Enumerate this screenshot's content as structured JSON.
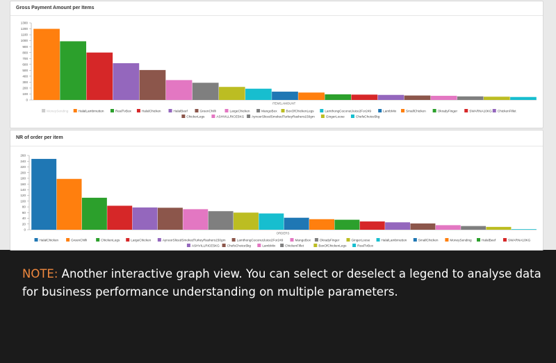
{
  "note": {
    "label": "NOTE:",
    "text": " Another interactive graph view. You can select or deselect a legend to analyse data for business performance understanding on multiple parameters."
  },
  "chart_data": [
    {
      "type": "bar",
      "title": "Gross Payment Amount per Items",
      "xlabel": "ITEMS,AMOUNT",
      "ylabel": "",
      "ylim": [
        0,
        1300
      ],
      "yticks": [
        0,
        100,
        200,
        300,
        400,
        500,
        600,
        700,
        800,
        900,
        1000,
        1100,
        1200,
        1300
      ],
      "legend_position": "bottom",
      "disabled_series": [
        "MoneySending"
      ],
      "series": [
        {
          "name": "MoneySending",
          "value": 0,
          "color": "#cccccc"
        },
        {
          "name": "HalalLambmutton",
          "value": 1200,
          "color": "#ff7f0e"
        },
        {
          "name": "RealTvBox",
          "value": 990,
          "color": "#2ca02c"
        },
        {
          "name": "HalalChicken",
          "value": 800,
          "color": "#d62728"
        },
        {
          "name": "HalalBeef",
          "value": 620,
          "color": "#9467bd"
        },
        {
          "name": "GreenChilli",
          "value": 505,
          "color": "#8c564b"
        },
        {
          "name": "LargeChicken",
          "value": 335,
          "color": "#e377c2"
        },
        {
          "name": "MangoBox",
          "value": 290,
          "color": "#7f7f7f"
        },
        {
          "name": "BoxOfChickenLegs",
          "value": 220,
          "color": "#bcbd22"
        },
        {
          "name": "LamthongCoconutJuice2For249",
          "value": 190,
          "color": "#17becf"
        },
        {
          "name": "LambMix",
          "value": 140,
          "color": "#1f77b4"
        },
        {
          "name": "SmallChicken",
          "value": 125,
          "color": "#ff7f0e"
        },
        {
          "name": "OkradyFinger",
          "value": 95,
          "color": "#2ca02c"
        },
        {
          "name": "SWARNA10KG",
          "value": 90,
          "color": "#d62728"
        },
        {
          "name": "ChickenFillet",
          "value": 85,
          "color": "#9467bd"
        },
        {
          "name": "ChickerLegs",
          "value": 75,
          "color": "#8c564b"
        },
        {
          "name": "ASHVILLRICE5KG",
          "value": 70,
          "color": "#e377c2"
        },
        {
          "name": "AynoorSlicedSmokedTurkeyRashers150gm",
          "value": 60,
          "color": "#7f7f7f"
        },
        {
          "name": "GingerLoose",
          "value": 55,
          "color": "#bcbd22"
        },
        {
          "name": "ChefsChoice5kg",
          "value": 50,
          "color": "#17becf"
        }
      ]
    },
    {
      "type": "bar",
      "title": "NR of order per item",
      "xlabel": "ORDERS",
      "ylabel": "",
      "ylim": [
        0,
        260
      ],
      "yticks": [
        0,
        20,
        40,
        60,
        80,
        100,
        120,
        140,
        160,
        180,
        200,
        220,
        240,
        260
      ],
      "legend_position": "bottom",
      "series": [
        {
          "name": "HalalChicken",
          "value": 248,
          "color": "#1f77b4"
        },
        {
          "name": "GreenChilli",
          "value": 178,
          "color": "#ff7f0e"
        },
        {
          "name": "ChickenLegs",
          "value": 112,
          "color": "#2ca02c"
        },
        {
          "name": "LargeChicken",
          "value": 84,
          "color": "#d62728"
        },
        {
          "name": "AynoorSlicedSmokedTurkeyRashers150gm",
          "value": 78,
          "color": "#9467bd"
        },
        {
          "name": "LamthongCoconutJuice2For249",
          "value": 77,
          "color": "#8c564b"
        },
        {
          "name": "MangoBox",
          "value": 72,
          "color": "#e377c2"
        },
        {
          "name": "OkradyFinger",
          "value": 65,
          "color": "#7f7f7f"
        },
        {
          "name": "GingerLoose",
          "value": 60,
          "color": "#bcbd22"
        },
        {
          "name": "HalalLambmutton",
          "value": 57,
          "color": "#17becf"
        },
        {
          "name": "SmallChicken",
          "value": 42,
          "color": "#1f77b4"
        },
        {
          "name": "MoneySending",
          "value": 37,
          "color": "#ff7f0e"
        },
        {
          "name": "HalalBeef",
          "value": 35,
          "color": "#2ca02c"
        },
        {
          "name": "SWARNA10KG",
          "value": 29,
          "color": "#d62728"
        },
        {
          "name": "ASHVILLRICE5KG",
          "value": 26,
          "color": "#9467bd"
        },
        {
          "name": "ChefsChoice5kg",
          "value": 22,
          "color": "#8c564b"
        },
        {
          "name": "LambMix",
          "value": 16,
          "color": "#e377c2"
        },
        {
          "name": "ChickenFillet",
          "value": 13,
          "color": "#7f7f7f"
        },
        {
          "name": "BoxOfChickenLegs",
          "value": 10,
          "color": "#bcbd22"
        },
        {
          "name": "RealTvBox",
          "value": 2,
          "color": "#17becf"
        }
      ]
    }
  ]
}
